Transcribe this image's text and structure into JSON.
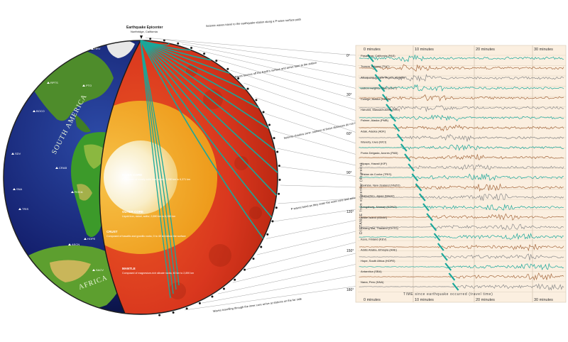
{
  "epicenter": {
    "title": "Earthquake Epicenter",
    "place": "Northridge, California"
  },
  "continents": {
    "south_america": "SOUTH AMERICA",
    "africa": "AFRICA"
  },
  "stations_globe": [
    "HRV",
    "RPTS",
    "PTO",
    "BOCO",
    "SDV",
    "CRAB",
    "ROCA",
    "SNA",
    "TRIS",
    "HOPE",
    "ASCN",
    "SACV",
    "NVYS"
  ],
  "layers": {
    "inner_core": {
      "title": "INNER CORE",
      "text": "Composed of mostly solid iron, nickel; 5,150 km to 6,371 km"
    },
    "outer_core": {
      "title": "OUTER CORE",
      "text": "Liquid iron, nickel, sulfur; 2,890 km to 5,150 km"
    },
    "crust": {
      "title": "CRUST",
      "text": "Composed of basaltic and granitic rocks; 0 to 40 km below the surface"
    },
    "mantle": {
      "title": "MANTLE",
      "text": "Composed of magnesium-rich silicate rocks; 40 km to 2,890 km"
    }
  },
  "callouts": [
    "Seismic waves travel to the earthquake station along a P-wave surface path",
    "Waves bounce off the Earth's surface and arrive later at the station",
    "Seismic shadow zone: stations at these distances do not record direct P waves",
    "P waves bend as they enter the outer core and arrive later than expected",
    "Waves travelling through the inner core arrive at stations on the far side"
  ],
  "seismogram": {
    "time_labels": [
      "0 minutes",
      "10 minutes",
      "20 minutes",
      "30 minutes"
    ],
    "x_axis_title": "TIME since earthquake occurred (travel time)",
    "y_axis_title": "DISTANCE from epicenter (degrees)",
    "distance_labels": [
      "0°",
      "30°",
      "60°",
      "90°",
      "120°",
      "150°",
      "180°"
    ],
    "station_labels": [
      "Pasadena, California (PAS)",
      "Tucson, Arizona (TUC)",
      "Albuquerque, New Mexico (ANMO)",
      "Lisbon Heights, Ohio (LSCT)",
      "College, Alaska (COLA)",
      "Harvard, Massachusetts (HRV)",
      "Palmer, Alaska (PMB)",
      "Adak, Alaska (ADK)",
      "Waverly, Iowa (WCI)",
      "Ponta Delgada, Azores (PAB)",
      "Kipapa, Hawaii (KIP)",
      "Tristan da Cunha (TRIS)",
      "Ruahine, New Zealand (SNZO)",
      "Matsushiro, Japan (MAJO)",
      "Kongsberg, Norway (KONO)",
      "Wake Island (WAKE)",
      "Chiang Mai, Thailand (CHTO)",
      "Kevo, Finland (KEV)",
      "Addis Ababa, Ethiopia (AAE)",
      "Hope, South Africa (HOPE)",
      "Antarctica (SBA)",
      "Nana, Peru (NNA)"
    ]
  },
  "palette": {
    "ocean": "#14206e",
    "land": "#3c9a2a",
    "mantle": "#d9371e",
    "outer_core": "#f0a21c",
    "inner_core": "#f7e8b8",
    "ray": "#1aa79a",
    "paper": "#fbefe0",
    "trace_teal": "#1aa79a",
    "trace_brown": "#a66a40"
  }
}
